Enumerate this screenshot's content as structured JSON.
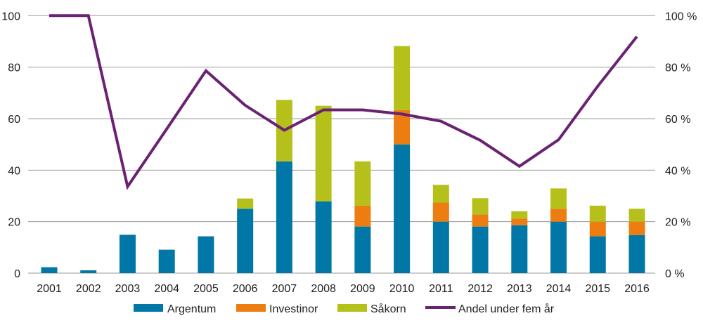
{
  "chart_data": {
    "type": "bar",
    "stacked": true,
    "categories": [
      "2001",
      "2002",
      "2003",
      "2004",
      "2005",
      "2006",
      "2007",
      "2008",
      "2009",
      "2010",
      "2011",
      "2012",
      "2013",
      "2014",
      "2015",
      "2016"
    ],
    "series": [
      {
        "name": "Argentum",
        "color": "#0077a6",
        "values": [
          2.3,
          1.1,
          14.9,
          9.1,
          14.3,
          25.0,
          43.4,
          27.9,
          18.1,
          50.0,
          20.0,
          18.1,
          18.6,
          20.0,
          14.3,
          14.8
        ]
      },
      {
        "name": "Investinor",
        "color": "#ee7d11",
        "values": [
          0,
          0,
          0,
          0,
          0,
          0,
          0,
          0,
          8.1,
          13.3,
          7.4,
          4.7,
          2.6,
          5.0,
          5.7,
          5.2
        ]
      },
      {
        "name": "Såkorn",
        "color": "#b5c11a",
        "values": [
          0,
          0,
          0,
          0,
          0,
          4.0,
          23.9,
          37.1,
          17.2,
          24.9,
          6.9,
          6.3,
          2.8,
          7.9,
          6.2,
          5.0
        ]
      }
    ],
    "line_series": {
      "name": "Andel under fem år",
      "color": "#6a2272",
      "axis": "right",
      "values": [
        100,
        100,
        33.6,
        56,
        78.6,
        65.2,
        55.5,
        63.4,
        63.4,
        61.8,
        59.0,
        51.6,
        41.5,
        51.8,
        72.6,
        91.9
      ]
    },
    "ylim": [
      0,
      100
    ],
    "yticks": [
      "0",
      "20",
      "40",
      "60",
      "80",
      "100"
    ],
    "y2lim": [
      0,
      100
    ],
    "y2ticks": [
      "0 %",
      "20 %",
      "40 %",
      "60 %",
      "80 %",
      "100 %"
    ],
    "grid": true,
    "legend": "bottom",
    "legend_labels": [
      "Argentum",
      "Investinor",
      "Såkorn",
      "Andel under fem år"
    ]
  }
}
